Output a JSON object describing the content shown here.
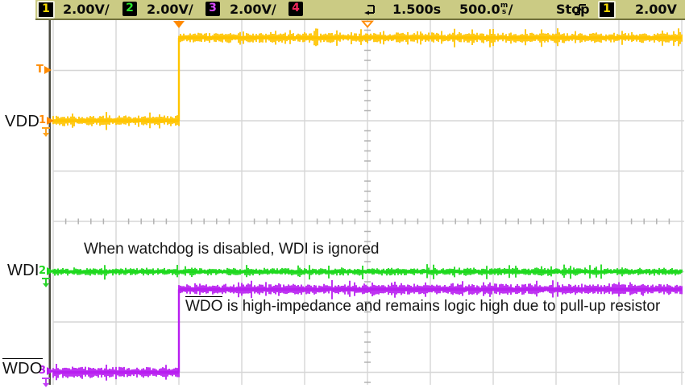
{
  "header": {
    "ch1_badge": "1",
    "ch1_scale": "2.00V/",
    "ch2_badge": "2",
    "ch2_scale": "2.00V/",
    "ch3_badge": "3",
    "ch3_scale": "2.00V/",
    "ch4_badge": "4",
    "delay": "1.500s",
    "timebase_value": "500.0",
    "timebase_unit_stack_top": "m",
    "timebase_unit_stack_bottom": "s",
    "timebase_slash": "/",
    "run_status": "Stop",
    "trigger_source_badge": "1",
    "trigger_level": "2.00V"
  },
  "markers": {
    "trigger_t": "T",
    "m1": "1",
    "m2": "2",
    "m3": "3"
  },
  "labels": {
    "vdd": "VDD",
    "wdi": "WDI",
    "wdo": "WDO"
  },
  "annotations": {
    "wdi_note": "When watchdog is disabled, WDI is ignored",
    "wdo_note_prefix": "WDO",
    "wdo_note_rest": " is high-impedance and remains logic high due to pull-up resistor"
  },
  "colors": {
    "ch1_trace": "#ffc400",
    "ch2_trace": "#1ed91e",
    "ch3_trace": "#b81ef0",
    "ch4_badge_digit": "#f0285a",
    "marker_orange": "#ff8a00",
    "statusbar_bg": "#cbcb84",
    "gridline": "#d6d6d6",
    "grid_tick": "#b2b2b2"
  },
  "chart_data": {
    "type": "line",
    "subtype": "oscilloscope-step-waveforms",
    "title": "",
    "timebase": {
      "per_div_label": "500.0ms/",
      "seconds_per_div": 0.5,
      "divisions_shown": 10,
      "delay_label": "1.500s",
      "delay_s": 1.5
    },
    "vertical": {
      "volts_per_div": 2.0,
      "per_div_label": "2.00V/"
    },
    "trigger": {
      "source_channel": 1,
      "level_v": 2.0,
      "level_label": "2.00V",
      "slope": "rising",
      "time_position_div": 2,
      "run_status": "Stop"
    },
    "series": [
      {
        "name": "VDD",
        "channel": 1,
        "color": "#ffc400",
        "ground_ref_div_from_top": 2.0,
        "noise_vpp": 0.3,
        "points_div_v": [
          [
            0,
            0
          ],
          [
            2,
            0
          ],
          [
            2,
            3.3
          ],
          [
            10,
            3.3
          ]
        ]
      },
      {
        "name": "WDI",
        "channel": 2,
        "color": "#1ed91e",
        "ground_ref_div_from_top": 5.0,
        "noise_vpp": 0.22,
        "points_div_v": [
          [
            0,
            0
          ],
          [
            10,
            0
          ]
        ]
      },
      {
        "name": "WDO",
        "channel": 3,
        "color": "#b81ef0",
        "ground_ref_div_from_top": 7.0,
        "noise_vpp": 0.32,
        "points_div_v": [
          [
            0,
            0
          ],
          [
            2,
            0
          ],
          [
            2,
            3.3
          ],
          [
            10,
            3.3
          ]
        ]
      }
    ],
    "annotations": [
      "When watchdog is disabled, WDI is ignored",
      "WDO is high-impedance and remains logic high due to pull-up resistor"
    ],
    "layout_hints": {
      "grid": "on",
      "legend": "none",
      "background": "white"
    }
  }
}
